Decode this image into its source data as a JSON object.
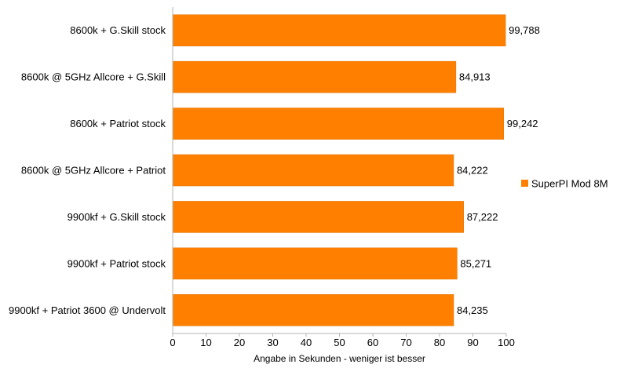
{
  "chart_data": {
    "type": "bar",
    "orientation": "horizontal",
    "categories": [
      "8600k + G.Skill stock",
      "8600k @ 5GHz Allcore + G.Skill",
      "8600k + Patriot stock",
      "8600k @ 5GHz Allcore + Patriot",
      "9900kf + G.Skill stock",
      "9900kf + Patriot stock",
      "9900kf + Patriot 3600 @ Undervolt"
    ],
    "values": [
      99.788,
      84.913,
      99.242,
      84.222,
      87.222,
      85.271,
      84.235
    ],
    "data_labels": [
      "99,788",
      "84,913",
      "99,242",
      "84,222",
      "87,222",
      "85,271",
      "84,235"
    ],
    "series": [
      {
        "name": "SuperPI Mod 8M",
        "color": "#ff8000"
      }
    ],
    "xlabel": "Angabe in Sekunden - weniger ist besser",
    "xlim": [
      0,
      100
    ],
    "xticks": [
      0,
      10,
      20,
      30,
      40,
      50,
      60,
      70,
      80,
      90,
      100
    ],
    "grid": false,
    "legend_position": "right"
  }
}
